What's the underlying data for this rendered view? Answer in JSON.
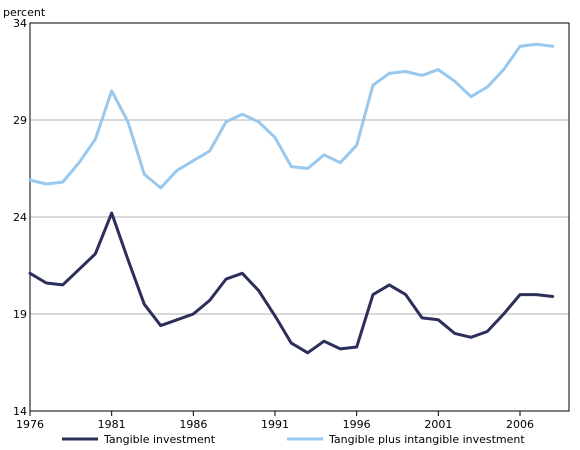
{
  "chart_data": {
    "type": "line",
    "title": "",
    "xlabel": "",
    "ylabel": "percent",
    "ylim": [
      14,
      34
    ],
    "xlim": [
      1976,
      2009
    ],
    "y_ticks": [
      "14",
      "19",
      "24",
      "29",
      "34"
    ],
    "x_ticks": [
      "1976",
      "1981",
      "1986",
      "1991",
      "1996",
      "2001",
      "2006"
    ],
    "grid": "horizontal",
    "legend_placement": "bottom",
    "x": [
      1976,
      1977,
      1978,
      1979,
      1980,
      1981,
      1982,
      1983,
      1984,
      1985,
      1986,
      1987,
      1988,
      1989,
      1990,
      1991,
      1992,
      1993,
      1994,
      1995,
      1996,
      1997,
      1998,
      1999,
      2000,
      2001,
      2002,
      2003,
      2004,
      2005,
      2006,
      2007,
      2008
    ],
    "series": [
      {
        "name": "Tangible investment",
        "color": "#2b2f5a",
        "values": [
          21.1,
          20.6,
          20.5,
          21.3,
          22.1,
          24.2,
          21.8,
          19.5,
          18.4,
          18.7,
          19.0,
          19.7,
          20.8,
          21.1,
          20.2,
          18.9,
          17.5,
          17.0,
          17.6,
          17.2,
          17.3,
          20.0,
          20.5,
          20.0,
          18.8,
          18.7,
          18.0,
          17.8,
          18.1,
          19.0,
          20.0,
          20.0,
          19.9
        ]
      },
      {
        "name": "Tangible plus intangible investment",
        "color": "#99c8ef",
        "values": [
          25.9,
          25.7,
          25.8,
          26.8,
          28.0,
          30.5,
          28.9,
          26.2,
          25.5,
          26.4,
          26.9,
          27.4,
          28.9,
          29.3,
          28.9,
          28.1,
          26.6,
          26.5,
          27.2,
          26.8,
          27.7,
          30.8,
          31.4,
          31.5,
          31.3,
          31.6,
          31.0,
          30.2,
          30.7,
          31.6,
          32.8,
          32.9,
          32.8
        ]
      }
    ]
  }
}
